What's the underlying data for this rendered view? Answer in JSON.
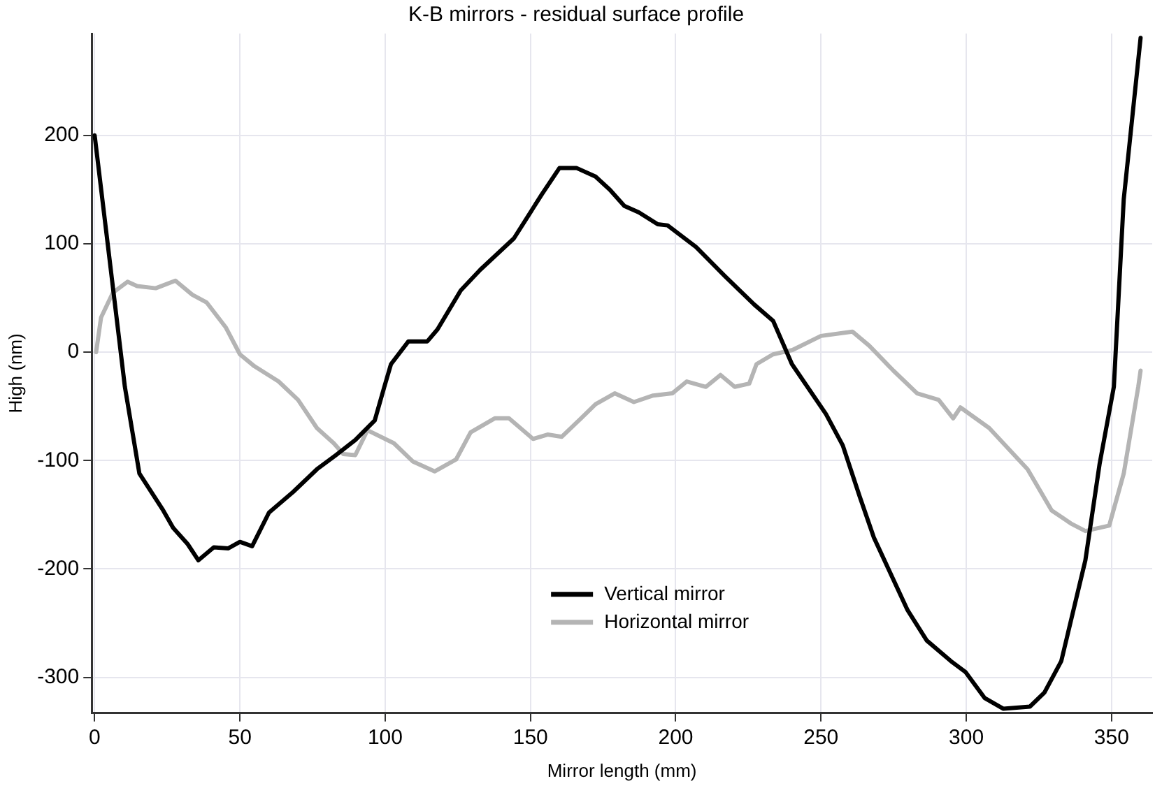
{
  "chart_data": {
    "type": "line",
    "title": "K-B mirrors - residual surface profile",
    "xlabel": "Mirror length (mm)",
    "ylabel": "High (nm)",
    "xlim": [
      -1,
      364
    ],
    "ylim": [
      -333,
      294
    ],
    "xticks": [
      0,
      50,
      100,
      150,
      200,
      250,
      300,
      350
    ],
    "yticks": [
      -300,
      -200,
      -100,
      0,
      100,
      200
    ],
    "grid": true,
    "legend": "bottom",
    "marker": "none",
    "line_style": "solid",
    "series": [
      {
        "name": "Vertical mirror",
        "color": "#000000",
        "x": [
          0,
          10.4,
          15.4,
          23.6,
          27,
          32,
          35.7,
          41,
          46,
          50,
          54.2,
          60,
          68.3,
          76.5,
          83,
          89.7,
          96.4,
          99.7,
          102,
          108,
          114.5,
          118,
          126,
          132.7,
          144.3,
          154,
          160,
          165.8,
          172.4,
          177.3,
          182.3,
          187.3,
          193.8,
          197.2,
          207,
          217,
          227,
          233.5,
          240,
          251.7,
          257.5,
          263.3,
          268.2,
          279.8,
          286.4,
          294.7,
          299.7,
          306.3,
          312.8,
          321.9,
          326.9,
          332.7,
          341,
          345.9,
          350.8,
          354.2,
          360
        ],
        "values": [
          200,
          -32,
          -112,
          -146,
          -162,
          -177,
          -192,
          -180,
          -181,
          -175,
          -179,
          -148,
          -129,
          -108,
          -95,
          -81,
          -63,
          -32,
          -11,
          10,
          10,
          21,
          57,
          76,
          105,
          146,
          170,
          170,
          162,
          150,
          135,
          129,
          118,
          117,
          97,
          70,
          44,
          29,
          -11,
          -57,
          -86,
          -133,
          -171,
          -238,
          -266,
          -285,
          -295,
          -319,
          -329,
          -327,
          -314,
          -285,
          -192,
          -103,
          -32,
          141,
          290
        ]
      },
      {
        "name": "Horizontal mirror",
        "color": "#b4b4b4",
        "x": [
          0.5,
          2.2,
          6.3,
          11.3,
          14.6,
          21,
          27.8,
          33.6,
          38.5,
          45.1,
          50,
          55,
          63.3,
          70,
          76.5,
          82.3,
          85.6,
          89.7,
          93.9,
          103,
          109.6,
          117,
          124.4,
          129.4,
          137.7,
          142.6,
          150.9,
          155.9,
          160.8,
          167.4,
          172.4,
          179,
          185.6,
          192.2,
          198.8,
          203.8,
          210.4,
          215.4,
          220.3,
          225.3,
          227.8,
          233.5,
          240.2,
          250,
          260.8,
          266.6,
          274.9,
          283.1,
          290.5,
          295.5,
          298,
          307.9,
          321.1,
          329.4,
          336,
          341,
          349.2,
          354.2,
          359.2,
          360
        ],
        "values": [
          0,
          32,
          55,
          65,
          61,
          59,
          66,
          53,
          46,
          23,
          -2,
          -13,
          -27,
          -44,
          -70,
          -84,
          -94,
          -95,
          -72,
          -84,
          -101,
          -110,
          -99,
          -74,
          -61,
          -61,
          -80,
          -76,
          -78,
          -61,
          -48,
          -38,
          -46,
          -40,
          -38,
          -27,
          -32,
          -21,
          -32,
          -29,
          -11,
          -2,
          2,
          15,
          19,
          6,
          -17,
          -38,
          -44,
          -61,
          -51,
          -70,
          -108,
          -146,
          -158,
          -165,
          -160,
          -112,
          -32,
          -17
        ]
      }
    ]
  }
}
